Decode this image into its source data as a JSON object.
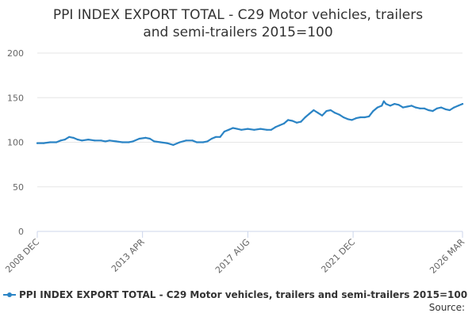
{
  "title_lines": [
    "PPI INDEX EXPORT TOTAL - C29 Motor vehicles, trailers",
    "and semi-trailers 2015=100"
  ],
  "source_label": "Source:",
  "colors": {
    "series": "#2b84c5",
    "grid": "#e6e6e6",
    "axis": "#ccd6eb",
    "text": "#666666"
  },
  "chart_data": {
    "type": "line",
    "title": "PPI INDEX EXPORT TOTAL - C29 Motor vehicles, trailers and semi-trailers 2015=100",
    "xlabel": "",
    "ylabel": "",
    "ylim": [
      0,
      200
    ],
    "yticks": [
      0,
      50,
      100,
      150,
      200
    ],
    "x_range": [
      0,
      1
    ],
    "xtick_labels": [
      {
        "label": "2008 DEC",
        "x": 0.0
      },
      {
        "label": "2013 APR",
        "x": 0.2475
      },
      {
        "label": "2017 AUG",
        "x": 0.4951
      },
      {
        "label": "2021 DEC",
        "x": 0.7427
      },
      {
        "label": "2026 MAR",
        "x": 1.0
      }
    ],
    "legend_position": "bottom",
    "series": [
      {
        "name": "PPI INDEX EXPORT TOTAL - C29 Motor vehicles, trailers and semi-trailers 2015=100",
        "points": [
          [
            0.0,
            99
          ],
          [
            0.015,
            99
          ],
          [
            0.03,
            100
          ],
          [
            0.045,
            100
          ],
          [
            0.055,
            102
          ],
          [
            0.065,
            103
          ],
          [
            0.075,
            106
          ],
          [
            0.085,
            105
          ],
          [
            0.095,
            103
          ],
          [
            0.105,
            102
          ],
          [
            0.12,
            103
          ],
          [
            0.135,
            102
          ],
          [
            0.15,
            102
          ],
          [
            0.16,
            101
          ],
          [
            0.17,
            102
          ],
          [
            0.185,
            101
          ],
          [
            0.2,
            100
          ],
          [
            0.215,
            100
          ],
          [
            0.225,
            101
          ],
          [
            0.24,
            104
          ],
          [
            0.255,
            105
          ],
          [
            0.265,
            104
          ],
          [
            0.275,
            101
          ],
          [
            0.29,
            100
          ],
          [
            0.305,
            99
          ],
          [
            0.32,
            97
          ],
          [
            0.335,
            100
          ],
          [
            0.35,
            102
          ],
          [
            0.365,
            102
          ],
          [
            0.375,
            100
          ],
          [
            0.39,
            100
          ],
          [
            0.4,
            101
          ],
          [
            0.41,
            104
          ],
          [
            0.42,
            106
          ],
          [
            0.43,
            106
          ],
          [
            0.44,
            112
          ],
          [
            0.45,
            114
          ],
          [
            0.46,
            116
          ],
          [
            0.47,
            115
          ],
          [
            0.48,
            114
          ],
          [
            0.495,
            115
          ],
          [
            0.51,
            114
          ],
          [
            0.525,
            115
          ],
          [
            0.54,
            114
          ],
          [
            0.55,
            114
          ],
          [
            0.56,
            117
          ],
          [
            0.57,
            119
          ],
          [
            0.58,
            121
          ],
          [
            0.59,
            125
          ],
          [
            0.6,
            124
          ],
          [
            0.61,
            122
          ],
          [
            0.62,
            123
          ],
          [
            0.63,
            128
          ],
          [
            0.64,
            132
          ],
          [
            0.65,
            136
          ],
          [
            0.66,
            133
          ],
          [
            0.67,
            130
          ],
          [
            0.68,
            135
          ],
          [
            0.69,
            136
          ],
          [
            0.7,
            133
          ],
          [
            0.71,
            131
          ],
          [
            0.72,
            128
          ],
          [
            0.73,
            126
          ],
          [
            0.74,
            125
          ],
          [
            0.75,
            127
          ],
          [
            0.76,
            128
          ],
          [
            0.77,
            128
          ],
          [
            0.78,
            129
          ],
          [
            0.79,
            135
          ],
          [
            0.8,
            139
          ],
          [
            0.81,
            141
          ],
          [
            0.815,
            146
          ],
          [
            0.82,
            143
          ],
          [
            0.83,
            141
          ],
          [
            0.84,
            143
          ],
          [
            0.85,
            142
          ],
          [
            0.86,
            139
          ],
          [
            0.87,
            140
          ],
          [
            0.88,
            141
          ],
          [
            0.89,
            139
          ],
          [
            0.9,
            138
          ],
          [
            0.91,
            138
          ],
          [
            0.92,
            136
          ],
          [
            0.93,
            135
          ],
          [
            0.94,
            138
          ],
          [
            0.95,
            139
          ],
          [
            0.96,
            137
          ],
          [
            0.97,
            136
          ],
          [
            0.98,
            139
          ],
          [
            0.99,
            141
          ],
          [
            1.0,
            143
          ]
        ]
      }
    ]
  }
}
